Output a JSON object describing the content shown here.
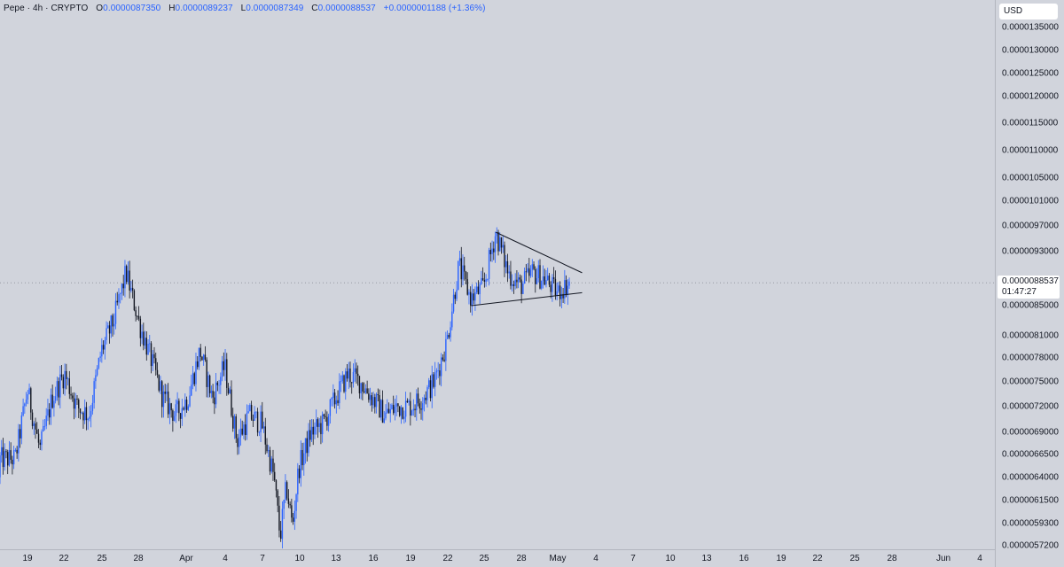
{
  "header": {
    "symbol": "Pepe",
    "interval": "4h",
    "exchange": "CRYPTO",
    "title": "Pepe · 4h · CRYPTO",
    "open_label": "O",
    "open": "0.0000087350",
    "high_label": "H",
    "high": "0.0000089237",
    "low_label": "L",
    "low": "0.0000087349",
    "close_label": "C",
    "close": "0.0000088537",
    "change": "+0.0000001188 (+1.36%)"
  },
  "currency_button": {
    "label": "USD"
  },
  "last_price": {
    "price": "0.0000088537",
    "countdown": "01:47:27"
  },
  "colors": {
    "up": "#2962ff",
    "down": "#131722",
    "background": "#d1d4dc",
    "trendline": "#131722"
  },
  "chart_data": {
    "type": "candlestick",
    "title": "",
    "xlabel": "",
    "ylabel": "",
    "y_ticks": [
      "0.0000135000",
      "0.0000130000",
      "0.0000125000",
      "0.0000120000",
      "0.0000115000",
      "0.0000110000",
      "0.0000105000",
      "0.0000101000",
      "0.0000097000",
      "0.0000093000",
      "0.0000089000",
      "0.0000085000",
      "0.0000081000",
      "0.0000078000",
      "0.0000075000",
      "0.0000072000",
      "0.0000069000",
      "0.0000066500",
      "0.0000064000",
      "0.0000061500",
      "0.0000059300",
      "0.0000057200"
    ],
    "x_ticks": [
      "19",
      "22",
      "25",
      "28",
      "Apr",
      "4",
      "7",
      "10",
      "13",
      "16",
      "19",
      "22",
      "25",
      "28",
      "May",
      "4",
      "7",
      "10",
      "13",
      "16",
      "19",
      "22",
      "25",
      "28",
      "Jun",
      "4"
    ],
    "ylim": [
      5.6e-06,
      1.4e-05
    ],
    "scale": "log",
    "grid": false,
    "keypoints": [
      {
        "date": "2024-03-18",
        "price": 6.6e-06
      },
      {
        "date": "2024-03-19",
        "price": 7.4e-06
      },
      {
        "date": "2024-03-20",
        "price": 6.7e-06
      },
      {
        "date": "2024-03-21",
        "price": 7.3e-06
      },
      {
        "date": "2024-03-22",
        "price": 7.6e-06
      },
      {
        "date": "2024-03-23",
        "price": 7.2e-06
      },
      {
        "date": "2024-03-24",
        "price": 7.1e-06
      },
      {
        "date": "2024-03-25",
        "price": 7.9e-06
      },
      {
        "date": "2024-03-26",
        "price": 8.3e-06
      },
      {
        "date": "2024-03-27",
        "price": 9e-06
      },
      {
        "date": "2024-03-28",
        "price": 8.3e-06
      },
      {
        "date": "2024-03-29",
        "price": 7.8e-06
      },
      {
        "date": "2024-03-30",
        "price": 7.3e-06
      },
      {
        "date": "2024-03-31",
        "price": 7.1e-06
      },
      {
        "date": "2024-04-01",
        "price": 7.3e-06
      },
      {
        "date": "2024-04-02",
        "price": 7.9e-06
      },
      {
        "date": "2024-04-03",
        "price": 7.3e-06
      },
      {
        "date": "2024-04-04",
        "price": 7.7e-06
      },
      {
        "date": "2024-04-05",
        "price": 6.8e-06
      },
      {
        "date": "2024-04-06",
        "price": 7.1e-06
      },
      {
        "date": "2024-04-07",
        "price": 7e-06
      },
      {
        "date": "2024-04-08",
        "price": 6.4e-06
      },
      {
        "date": "2024-04-08T12:00",
        "price": 5.8e-06
      },
      {
        "date": "2024-04-09",
        "price": 6.3e-06
      },
      {
        "date": "2024-04-09T12:00",
        "price": 5.9e-06
      },
      {
        "date": "2024-04-10",
        "price": 6.5e-06
      },
      {
        "date": "2024-04-11",
        "price": 6.9e-06
      },
      {
        "date": "2024-04-12",
        "price": 7e-06
      },
      {
        "date": "2024-04-13",
        "price": 7.3e-06
      },
      {
        "date": "2024-04-14",
        "price": 7.6e-06
      },
      {
        "date": "2024-04-15",
        "price": 7.5e-06
      },
      {
        "date": "2024-04-16",
        "price": 7.3e-06
      },
      {
        "date": "2024-04-17",
        "price": 7.1e-06
      },
      {
        "date": "2024-04-18",
        "price": 7.2e-06
      },
      {
        "date": "2024-04-19",
        "price": 7.2e-06
      },
      {
        "date": "2024-04-20",
        "price": 7.3e-06
      },
      {
        "date": "2024-04-21",
        "price": 7.5e-06
      },
      {
        "date": "2024-04-22",
        "price": 8e-06
      },
      {
        "date": "2024-04-23",
        "price": 9.1e-06
      },
      {
        "date": "2024-04-24",
        "price": 8.6e-06
      },
      {
        "date": "2024-04-25",
        "price": 8.8e-06
      },
      {
        "date": "2024-04-26",
        "price": 9.6e-06
      },
      {
        "date": "2024-04-27",
        "price": 9e-06
      },
      {
        "date": "2024-04-28",
        "price": 8.8e-06
      },
      {
        "date": "2024-04-29",
        "price": 9e-06
      },
      {
        "date": "2024-04-30",
        "price": 8.9e-06
      },
      {
        "date": "2024-05-01",
        "price": 8.7e-06
      },
      {
        "date": "2024-05-02",
        "price": 8.8537e-06
      }
    ],
    "trendlines": [
      {
        "name": "",
        "from": {
          "date": "2024-04-26",
          "price": 9.6e-06
        },
        "to": {
          "date": "2024-05-03",
          "price": 9e-06
        }
      },
      {
        "name": "",
        "from": {
          "date": "2024-04-24",
          "price": 8.5e-06
        },
        "to": {
          "date": "2024-05-03",
          "price": 8.7e-06
        }
      }
    ]
  }
}
